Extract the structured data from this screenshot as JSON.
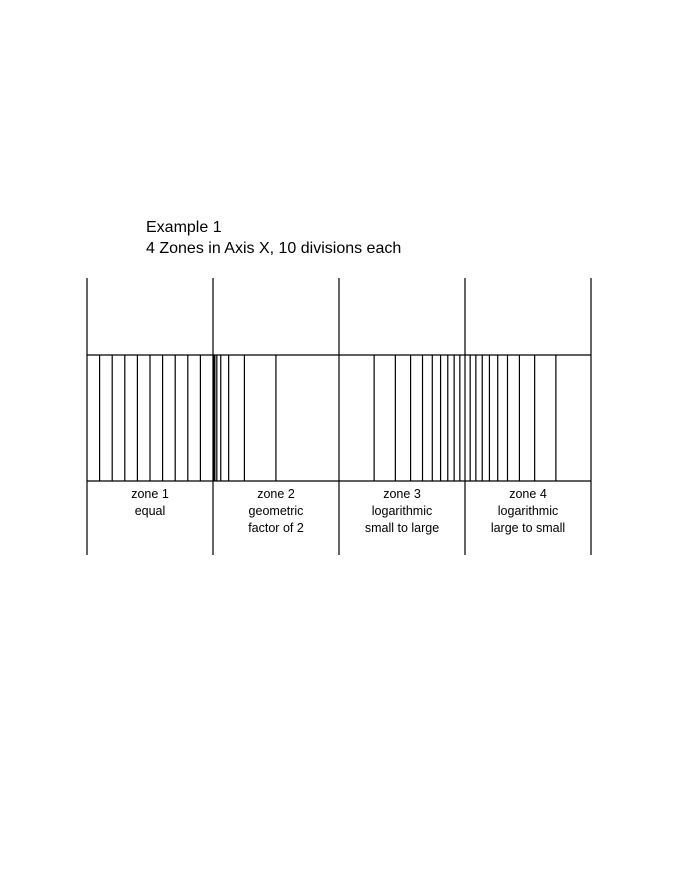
{
  "title": {
    "line1": "Example 1",
    "line2": "4 Zones in Axis X, 10 divisions each"
  },
  "zones": [
    {
      "lines": [
        "zone 1",
        "equal"
      ],
      "spacing": "equal",
      "divisions": 10
    },
    {
      "lines": [
        "zone 2",
        "geometric",
        "factor of 2"
      ],
      "spacing": "geometric",
      "divisions": 10,
      "factor": 2
    },
    {
      "lines": [
        "zone 3",
        "logarithmic",
        "small to large"
      ],
      "spacing": "log-small-to-large",
      "divisions": 10
    },
    {
      "lines": [
        "zone 4",
        "logarithmic",
        "large to small"
      ],
      "spacing": "log-large-to-small",
      "divisions": 10
    }
  ]
}
